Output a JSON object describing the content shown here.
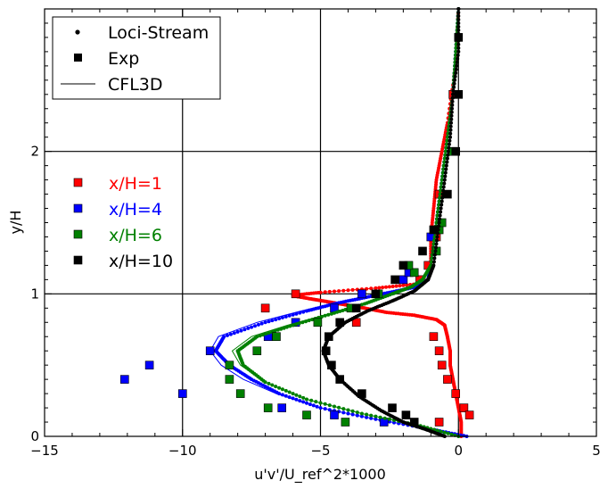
{
  "chart_data": {
    "type": "scatter",
    "xlabel": "u'v'/U_ref^2*1000",
    "ylabel": "y/H",
    "xlim": [
      -15,
      5
    ],
    "ylim": [
      0,
      3.0
    ],
    "x_ticks": [
      -15,
      -10,
      -5,
      0,
      5
    ],
    "y_ticks": [
      0,
      1,
      2
    ],
    "x_tick_labels": [
      "−15",
      "−10",
      "−5",
      "0",
      "5"
    ],
    "y_tick_labels": [
      "0",
      "1",
      "2"
    ],
    "grid": "major",
    "legend_top": {
      "placement": "top-left",
      "entries": [
        {
          "label": "Loci-Stream",
          "marker": "dot"
        },
        {
          "label": "Exp",
          "marker": "square"
        },
        {
          "label": "CFL3D",
          "marker": "line"
        }
      ]
    },
    "legend_stations": {
      "placement": "middle-left",
      "entries": [
        {
          "label": "x/H=1",
          "color": "#ff0000"
        },
        {
          "label": "x/H=4",
          "color": "#0000ff"
        },
        {
          "label": "x/H=6",
          "color": "#008000"
        },
        {
          "label": "x/H=10",
          "color": "#000000"
        }
      ]
    },
    "stations": [
      {
        "label": "x/H=1",
        "color": "#ff0000",
        "loci_stream": [
          [
            0.1,
            0.0
          ],
          [
            0.1,
            0.1
          ],
          [
            0.0,
            0.2
          ],
          [
            -0.1,
            0.3
          ],
          [
            -0.2,
            0.4
          ],
          [
            -0.3,
            0.5
          ],
          [
            -0.3,
            0.6
          ],
          [
            -0.4,
            0.7
          ],
          [
            -0.5,
            0.78
          ],
          [
            -0.8,
            0.82
          ],
          [
            -1.6,
            0.85
          ],
          [
            -2.6,
            0.87
          ],
          [
            -3.4,
            0.9
          ],
          [
            -4.0,
            0.92
          ],
          [
            -4.6,
            0.94
          ],
          [
            -5.2,
            0.96
          ],
          [
            -5.8,
            0.98
          ],
          [
            -6.0,
            0.99
          ],
          [
            -5.0,
            1.01
          ],
          [
            -3.0,
            1.04
          ],
          [
            -1.5,
            1.07
          ],
          [
            -1.1,
            1.1
          ],
          [
            -1.0,
            1.2
          ],
          [
            -1.0,
            1.4
          ],
          [
            -0.9,
            1.6
          ],
          [
            -0.8,
            1.8
          ],
          [
            -0.6,
            2.0
          ],
          [
            -0.4,
            2.2
          ],
          [
            -0.1,
            2.6
          ],
          [
            0.0,
            3.0
          ]
        ],
        "cfl3d": [
          [
            0.1,
            0.0
          ],
          [
            0.1,
            0.1
          ],
          [
            0.0,
            0.2
          ],
          [
            -0.1,
            0.3
          ],
          [
            -0.2,
            0.4
          ],
          [
            -0.3,
            0.5
          ],
          [
            -0.3,
            0.6
          ],
          [
            -0.4,
            0.7
          ],
          [
            -0.5,
            0.78
          ],
          [
            -0.8,
            0.82
          ],
          [
            -1.6,
            0.85
          ],
          [
            -2.6,
            0.87
          ],
          [
            -3.4,
            0.9
          ],
          [
            -4.0,
            0.92
          ],
          [
            -4.6,
            0.94
          ],
          [
            -5.2,
            0.96
          ],
          [
            -5.8,
            0.98
          ],
          [
            -6.0,
            0.99
          ],
          [
            -5.0,
            1.01
          ],
          [
            -3.0,
            1.04
          ],
          [
            -1.5,
            1.07
          ],
          [
            -1.1,
            1.1
          ],
          [
            -1.0,
            1.2
          ],
          [
            -1.0,
            1.4
          ],
          [
            -0.9,
            1.6
          ],
          [
            -0.8,
            1.8
          ],
          [
            -0.6,
            2.0
          ],
          [
            -0.4,
            2.2
          ],
          [
            -0.1,
            2.6
          ],
          [
            0.0,
            3.0
          ]
        ],
        "exp": [
          [
            -0.7,
            0.1
          ],
          [
            0.2,
            0.2
          ],
          [
            0.4,
            0.15
          ],
          [
            -0.1,
            0.3
          ],
          [
            -0.4,
            0.4
          ],
          [
            -0.6,
            0.5
          ],
          [
            -0.7,
            0.6
          ],
          [
            -0.9,
            0.7
          ],
          [
            -3.7,
            0.8
          ],
          [
            -7.0,
            0.9
          ],
          [
            -5.9,
            1.0
          ],
          [
            -1.1,
            1.2
          ],
          [
            -1.4,
            1.1
          ],
          [
            -0.8,
            1.4
          ],
          [
            -0.7,
            1.7
          ],
          [
            -0.2,
            2.4
          ]
        ]
      },
      {
        "label": "x/H=4",
        "color": "#0000ff",
        "loci_stream": [
          [
            0.3,
            0.0
          ],
          [
            -1.0,
            0.05
          ],
          [
            -3.0,
            0.12
          ],
          [
            -5.0,
            0.2
          ],
          [
            -6.5,
            0.3
          ],
          [
            -7.5,
            0.4
          ],
          [
            -8.3,
            0.5
          ],
          [
            -8.8,
            0.6
          ],
          [
            -8.5,
            0.7
          ],
          [
            -7.0,
            0.8
          ],
          [
            -5.5,
            0.88
          ],
          [
            -4.5,
            0.93
          ],
          [
            -3.5,
            0.97
          ],
          [
            -2.5,
            1.01
          ],
          [
            -1.5,
            1.05
          ],
          [
            -1.1,
            1.1
          ],
          [
            -1.0,
            1.2
          ],
          [
            -0.8,
            1.5
          ],
          [
            -0.6,
            1.8
          ],
          [
            -0.4,
            2.1
          ],
          [
            -0.2,
            2.4
          ],
          [
            -0.1,
            2.7
          ],
          [
            0.0,
            3.0
          ]
        ],
        "cfl3d": [
          [
            0.3,
            0.0
          ],
          [
            -1.0,
            0.05
          ],
          [
            -3.0,
            0.12
          ],
          [
            -5.0,
            0.2
          ],
          [
            -6.6,
            0.3
          ],
          [
            -7.8,
            0.4
          ],
          [
            -8.6,
            0.5
          ],
          [
            -9.0,
            0.6
          ],
          [
            -8.7,
            0.7
          ],
          [
            -7.3,
            0.8
          ],
          [
            -5.7,
            0.88
          ],
          [
            -4.6,
            0.93
          ],
          [
            -3.6,
            0.97
          ],
          [
            -2.6,
            1.01
          ],
          [
            -1.5,
            1.05
          ],
          [
            -1.1,
            1.1
          ],
          [
            -1.0,
            1.2
          ],
          [
            -0.8,
            1.5
          ],
          [
            -0.6,
            1.8
          ],
          [
            -0.4,
            2.1
          ],
          [
            -0.2,
            2.4
          ],
          [
            -0.1,
            2.7
          ],
          [
            0.0,
            3.0
          ]
        ],
        "exp": [
          [
            -2.7,
            0.1
          ],
          [
            -4.5,
            0.15
          ],
          [
            -6.4,
            0.2
          ],
          [
            -10.0,
            0.3
          ],
          [
            -12.1,
            0.4
          ],
          [
            -11.2,
            0.5
          ],
          [
            -9.0,
            0.6
          ],
          [
            -6.9,
            0.7
          ],
          [
            -5.9,
            0.8
          ],
          [
            -4.5,
            0.9
          ],
          [
            -3.5,
            1.0
          ],
          [
            -2.0,
            1.1
          ],
          [
            -1.8,
            1.15
          ],
          [
            -1.0,
            1.4
          ]
        ]
      },
      {
        "label": "x/H=6",
        "color": "#008000",
        "loci_stream": [
          [
            0.0,
            0.0
          ],
          [
            -1.5,
            0.08
          ],
          [
            -3.5,
            0.16
          ],
          [
            -5.5,
            0.26
          ],
          [
            -7.0,
            0.38
          ],
          [
            -7.8,
            0.5
          ],
          [
            -8.0,
            0.6
          ],
          [
            -7.3,
            0.7
          ],
          [
            -6.0,
            0.78
          ],
          [
            -4.6,
            0.86
          ],
          [
            -3.4,
            0.93
          ],
          [
            -2.4,
            1.0
          ],
          [
            -1.7,
            1.05
          ],
          [
            -1.3,
            1.1
          ],
          [
            -1.0,
            1.2
          ],
          [
            -0.8,
            1.5
          ],
          [
            -0.6,
            1.8
          ],
          [
            -0.4,
            2.1
          ],
          [
            -0.2,
            2.4
          ],
          [
            -0.1,
            2.7
          ],
          [
            0.0,
            3.0
          ]
        ],
        "cfl3d": [
          [
            0.0,
            0.0
          ],
          [
            -1.5,
            0.08
          ],
          [
            -3.5,
            0.16
          ],
          [
            -5.5,
            0.26
          ],
          [
            -7.0,
            0.38
          ],
          [
            -7.9,
            0.5
          ],
          [
            -8.2,
            0.6
          ],
          [
            -7.5,
            0.7
          ],
          [
            -6.2,
            0.78
          ],
          [
            -4.7,
            0.86
          ],
          [
            -3.5,
            0.93
          ],
          [
            -2.5,
            1.0
          ],
          [
            -1.7,
            1.05
          ],
          [
            -1.3,
            1.1
          ],
          [
            -1.0,
            1.2
          ],
          [
            -0.8,
            1.5
          ],
          [
            -0.6,
            1.8
          ],
          [
            -0.4,
            2.1
          ],
          [
            -0.2,
            2.4
          ],
          [
            -0.1,
            2.7
          ],
          [
            0.0,
            3.0
          ]
        ],
        "exp": [
          [
            -4.1,
            0.1
          ],
          [
            -5.5,
            0.15
          ],
          [
            -6.9,
            0.2
          ],
          [
            -7.9,
            0.3
          ],
          [
            -8.3,
            0.4
          ],
          [
            -8.3,
            0.5
          ],
          [
            -7.3,
            0.6
          ],
          [
            -6.6,
            0.7
          ],
          [
            -5.1,
            0.8
          ],
          [
            -3.9,
            0.9
          ],
          [
            -2.9,
            1.0
          ],
          [
            -1.6,
            1.15
          ],
          [
            -1.8,
            1.2
          ],
          [
            -0.8,
            1.3
          ],
          [
            -0.7,
            1.45
          ],
          [
            -0.6,
            1.5
          ],
          [
            -0.2,
            2.0
          ]
        ]
      },
      {
        "label": "x/H=10",
        "color": "#000000",
        "loci_stream": [
          [
            -0.5,
            0.0
          ],
          [
            -1.2,
            0.05
          ],
          [
            -2.0,
            0.1
          ],
          [
            -2.8,
            0.18
          ],
          [
            -3.6,
            0.28
          ],
          [
            -4.3,
            0.4
          ],
          [
            -4.7,
            0.5
          ],
          [
            -4.9,
            0.6
          ],
          [
            -4.7,
            0.7
          ],
          [
            -4.1,
            0.8
          ],
          [
            -3.3,
            0.88
          ],
          [
            -2.4,
            0.95
          ],
          [
            -1.6,
            1.02
          ],
          [
            -1.1,
            1.1
          ],
          [
            -0.9,
            1.2
          ],
          [
            -0.7,
            1.5
          ],
          [
            -0.5,
            1.8
          ],
          [
            -0.3,
            2.1
          ],
          [
            -0.2,
            2.4
          ],
          [
            0.0,
            2.7
          ],
          [
            0.0,
            3.0
          ]
        ],
        "cfl3d": [
          [
            -0.5,
            0.0
          ],
          [
            -1.2,
            0.05
          ],
          [
            -2.0,
            0.1
          ],
          [
            -2.8,
            0.18
          ],
          [
            -3.6,
            0.28
          ],
          [
            -4.3,
            0.4
          ],
          [
            -4.7,
            0.5
          ],
          [
            -4.9,
            0.6
          ],
          [
            -4.7,
            0.7
          ],
          [
            -4.1,
            0.8
          ],
          [
            -3.3,
            0.88
          ],
          [
            -2.4,
            0.95
          ],
          [
            -1.6,
            1.02
          ],
          [
            -1.1,
            1.1
          ],
          [
            -0.9,
            1.2
          ],
          [
            -0.7,
            1.5
          ],
          [
            -0.5,
            1.8
          ],
          [
            -0.3,
            2.1
          ],
          [
            -0.2,
            2.4
          ],
          [
            0.0,
            2.7
          ],
          [
            0.0,
            3.0
          ]
        ],
        "exp": [
          [
            -1.6,
            0.1
          ],
          [
            -1.9,
            0.15
          ],
          [
            -2.4,
            0.2
          ],
          [
            -3.5,
            0.3
          ],
          [
            -4.3,
            0.4
          ],
          [
            -4.6,
            0.5
          ],
          [
            -4.8,
            0.6
          ],
          [
            -4.7,
            0.7
          ],
          [
            -4.3,
            0.8
          ],
          [
            -3.7,
            0.9
          ],
          [
            -3.0,
            1.0
          ],
          [
            -2.3,
            1.1
          ],
          [
            -2.0,
            1.2
          ],
          [
            -1.3,
            1.3
          ],
          [
            -0.9,
            1.45
          ],
          [
            -0.4,
            1.7
          ],
          [
            -0.1,
            2.0
          ],
          [
            0.0,
            2.4
          ],
          [
            0.0,
            2.8
          ]
        ]
      }
    ]
  }
}
